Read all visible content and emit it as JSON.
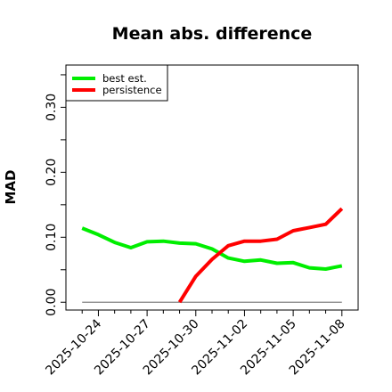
{
  "chart_data": {
    "type": "line",
    "title": "Mean abs. difference",
    "xlabel": "",
    "ylabel": "MAD",
    "x_tick_labels": [
      "2025-10-24",
      "2025-10-27",
      "2025-10-30",
      "2025-11-02",
      "2025-11-05",
      "2025-11-08"
    ],
    "y_tick_labels": [
      "0.00",
      "0.10",
      "0.20",
      "0.30"
    ],
    "xlim": [
      "2025-10-22",
      "2025-11-09"
    ],
    "ylim": [
      -0.012,
      0.365
    ],
    "grid": false,
    "legend_position": "top-left",
    "reference_line": {
      "y": 0.0,
      "from": "2025-10-23",
      "to": "2025-11-08",
      "color": "#808080"
    },
    "series": [
      {
        "name": "best est.",
        "color": "#00ee00",
        "x": [
          "2025-10-23",
          "2025-10-24",
          "2025-10-25",
          "2025-10-26",
          "2025-10-27",
          "2025-10-28",
          "2025-10-29",
          "2025-10-30",
          "2025-10-31",
          "2025-11-01",
          "2025-11-02",
          "2025-11-03",
          "2025-11-04",
          "2025-11-05",
          "2025-11-06",
          "2025-11-07",
          "2025-11-08"
        ],
        "values": [
          0.114,
          0.104,
          0.092,
          0.084,
          0.093,
          0.094,
          0.091,
          0.09,
          0.082,
          0.068,
          0.063,
          0.065,
          0.06,
          0.061,
          0.053,
          0.051,
          0.056
        ]
      },
      {
        "name": "persistence",
        "color": "#ff0000",
        "x": [
          "2025-10-29",
          "2025-10-30",
          "2025-10-31",
          "2025-11-01",
          "2025-11-02",
          "2025-11-03",
          "2025-11-04",
          "2025-11-05",
          "2025-11-06",
          "2025-11-07",
          "2025-11-08"
        ],
        "values": [
          0.0,
          0.04,
          0.066,
          0.087,
          0.094,
          0.094,
          0.097,
          0.11,
          0.115,
          0.12,
          0.144
        ]
      }
    ]
  }
}
